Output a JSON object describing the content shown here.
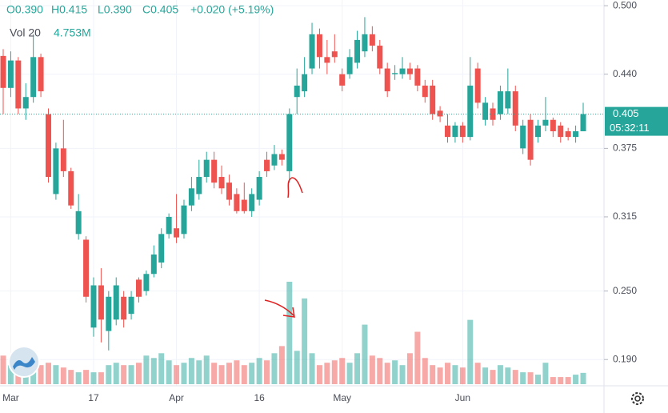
{
  "chart_data": {
    "type": "candlestick",
    "header": {
      "open": "O0.390",
      "high": "H0.415",
      "low": "L0.390",
      "close": "C0.405",
      "change": "+0.020 (+5.19%)",
      "volume_name": "Vol 20",
      "volume_value": "4.753M"
    },
    "categories": [
      null,
      "Mar",
      null,
      null,
      null,
      null,
      null,
      null,
      null,
      null,
      null,
      null,
      "17",
      null,
      null,
      null,
      null,
      null,
      null,
      null,
      null,
      null,
      null,
      "Apr",
      null,
      null,
      null,
      null,
      null,
      null,
      null,
      null,
      null,
      null,
      "16",
      null,
      null,
      null,
      null,
      null,
      null,
      null,
      null,
      null,
      null,
      "May",
      null,
      null,
      null,
      null,
      null,
      null,
      null,
      null,
      null,
      null,
      null,
      null,
      null,
      null,
      null,
      "Jun",
      null,
      null,
      null,
      null,
      null,
      null,
      null,
      null,
      null,
      null,
      null,
      null,
      null,
      null,
      null,
      null
    ],
    "open": [
      0.456,
      0.428,
      0.452,
      0.41,
      0.42,
      0.455,
      0.405,
      0.335,
      0.375,
      0.355,
      0.3,
      0.295,
      0.218,
      0.255,
      0.215,
      0.225,
      0.245,
      0.23,
      0.26,
      0.25,
      0.265,
      0.275,
      0.3,
      0.305,
      0.3,
      0.325,
      0.335,
      0.35,
      0.365,
      0.35,
      0.345,
      0.335,
      0.33,
      0.32,
      0.33,
      0.365,
      0.36,
      0.37,
      0.355,
      0.42,
      0.425,
      0.445,
      0.475,
      0.455,
      0.46,
      0.44,
      0.44,
      0.45,
      0.46,
      0.475,
      0.465,
      0.445,
      0.44,
      0.44,
      0.445,
      0.445,
      0.43,
      0.43,
      0.408,
      0.395,
      0.385,
      0.395,
      0.385,
      0.445,
      0.4,
      0.41,
      0.405,
      0.41,
      0.425,
      0.375,
      0.4,
      0.385,
      0.395,
      0.4,
      0.395,
      0.39,
      0.385,
      0.39
    ],
    "high": [
      0.462,
      0.46,
      0.455,
      0.432,
      0.475,
      0.458,
      0.41,
      0.38,
      0.4,
      0.358,
      0.335,
      0.298,
      0.262,
      0.27,
      0.25,
      0.262,
      0.25,
      0.25,
      0.262,
      0.268,
      0.29,
      0.305,
      0.318,
      0.335,
      0.33,
      0.35,
      0.365,
      0.372,
      0.372,
      0.36,
      0.352,
      0.34,
      0.345,
      0.34,
      0.355,
      0.372,
      0.378,
      0.374,
      0.41,
      0.445,
      0.455,
      0.485,
      0.48,
      0.47,
      0.475,
      0.445,
      0.462,
      0.478,
      0.49,
      0.482,
      0.47,
      0.45,
      0.448,
      0.455,
      0.45,
      0.448,
      0.435,
      0.435,
      0.412,
      0.405,
      0.398,
      0.398,
      0.455,
      0.45,
      0.42,
      0.415,
      0.43,
      0.445,
      0.43,
      0.4,
      0.405,
      0.4,
      0.42,
      0.402,
      0.398,
      0.393,
      0.395,
      0.415
    ],
    "low": [
      0.405,
      0.42,
      0.405,
      0.4,
      0.415,
      0.42,
      0.345,
      0.33,
      0.35,
      0.322,
      0.295,
      0.24,
      0.21,
      0.205,
      0.198,
      0.22,
      0.218,
      0.225,
      0.24,
      0.246,
      0.262,
      0.27,
      0.296,
      0.292,
      0.296,
      0.32,
      0.33,
      0.345,
      0.34,
      0.335,
      0.325,
      0.318,
      0.318,
      0.315,
      0.325,
      0.35,
      0.356,
      0.36,
      0.345,
      0.405,
      0.42,
      0.44,
      0.445,
      0.44,
      0.45,
      0.425,
      0.436,
      0.445,
      0.455,
      0.46,
      0.44,
      0.42,
      0.435,
      0.436,
      0.435,
      0.425,
      0.415,
      0.4,
      0.398,
      0.38,
      0.38,
      0.38,
      0.382,
      0.41,
      0.395,
      0.395,
      0.4,
      0.405,
      0.39,
      0.37,
      0.36,
      0.38,
      0.39,
      0.385,
      0.38,
      0.382,
      0.38,
      0.39
    ],
    "close": [
      0.428,
      0.452,
      0.41,
      0.42,
      0.455,
      0.425,
      0.35,
      0.375,
      0.355,
      0.325,
      0.32,
      0.245,
      0.255,
      0.225,
      0.245,
      0.255,
      0.225,
      0.245,
      0.245,
      0.265,
      0.282,
      0.3,
      0.315,
      0.297,
      0.325,
      0.34,
      0.35,
      0.365,
      0.345,
      0.34,
      0.33,
      0.32,
      0.32,
      0.335,
      0.35,
      0.355,
      0.37,
      0.365,
      0.405,
      0.43,
      0.44,
      0.475,
      0.455,
      0.45,
      0.455,
      0.43,
      0.455,
      0.47,
      0.475,
      0.465,
      0.445,
      0.425,
      0.441,
      0.445,
      0.44,
      0.43,
      0.42,
      0.405,
      0.403,
      0.385,
      0.395,
      0.385,
      0.43,
      0.415,
      0.415,
      0.4,
      0.425,
      0.425,
      0.395,
      0.395,
      0.365,
      0.395,
      0.4,
      0.39,
      0.385,
      0.385,
      0.39,
      0.405
    ],
    "volume": [
      12,
      8,
      10,
      6,
      12,
      8,
      9,
      8,
      7,
      6,
      5,
      6,
      5,
      5,
      8,
      9,
      8,
      8,
      9,
      12,
      11,
      13,
      10,
      8,
      9,
      11,
      10,
      12,
      9,
      8,
      9,
      10,
      8,
      9,
      11,
      10,
      13,
      16,
      43,
      14,
      36,
      13,
      8,
      9,
      10,
      11,
      9,
      13,
      25,
      12,
      11,
      9,
      10,
      8,
      13,
      22,
      11,
      8,
      7,
      9,
      8,
      7,
      27,
      9,
      7,
      6,
      8,
      7,
      6,
      5,
      5,
      4,
      9,
      3,
      3,
      3,
      4,
      4.753
    ],
    "up_color": "#26a69a",
    "down_color": "#ef5350",
    "ylim": [
      0.167,
      0.505
    ],
    "yticks": [
      {
        "value": 0.5,
        "label": "0.500"
      },
      {
        "value": 0.44,
        "label": "0.440"
      },
      {
        "value": 0.375,
        "label": "0.375"
      },
      {
        "value": 0.315,
        "label": "0.315"
      },
      {
        "value": 0.25,
        "label": "0.250"
      },
      {
        "value": 0.19,
        "label": "0.190"
      }
    ],
    "last_price": 0.405,
    "countdown": "05:32:11",
    "grid": true
  }
}
